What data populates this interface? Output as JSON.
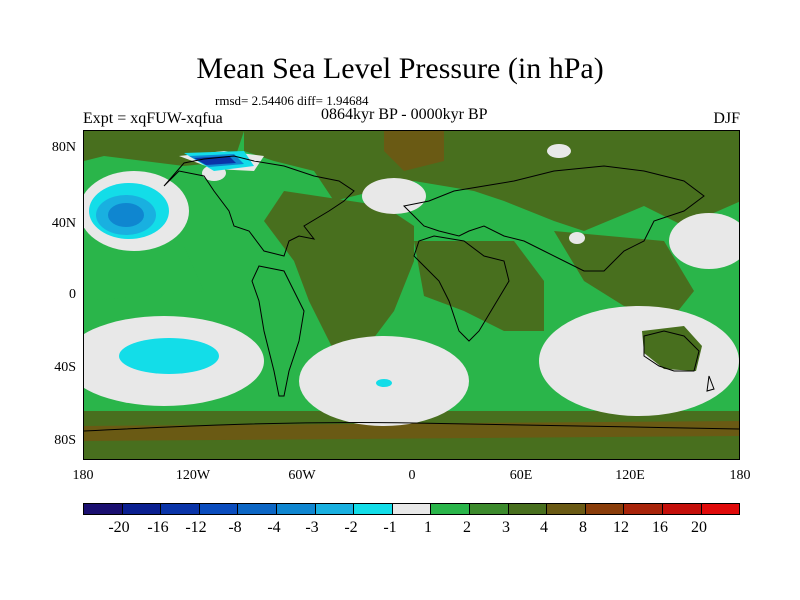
{
  "title": "Mean Sea Level Pressure (in hPa)",
  "stats": "rmsd= 2.54406  diff= 1.94684",
  "experiment": "Expt = xqFUW-xqfua",
  "period": "0864kyr BP - 0000kyr BP",
  "season": "DJF",
  "lat_labels": [
    "80N",
    "40N",
    "0",
    "40S",
    "80S"
  ],
  "lon_labels": [
    "180",
    "120W",
    "60W",
    "0",
    "60E",
    "120E",
    "180"
  ],
  "colorbar": {
    "labels": [
      "-20",
      "-16",
      "-12",
      "-8",
      "-4",
      "-3",
      "-2",
      "-1",
      "1",
      "2",
      "3",
      "4",
      "8",
      "12",
      "16",
      "20"
    ],
    "colors": [
      "#1a0f70",
      "#0a1f90",
      "#0a34a8",
      "#0a4cbd",
      "#0c66c4",
      "#0f86d0",
      "#19b0e0",
      "#13dde8",
      "#e8e8e8",
      "#2ab54a",
      "#3c8a2c",
      "#486f1e",
      "#6a5a14",
      "#8a3d0a",
      "#a8240a",
      "#c40f0a",
      "#e00a0a"
    ]
  }
}
